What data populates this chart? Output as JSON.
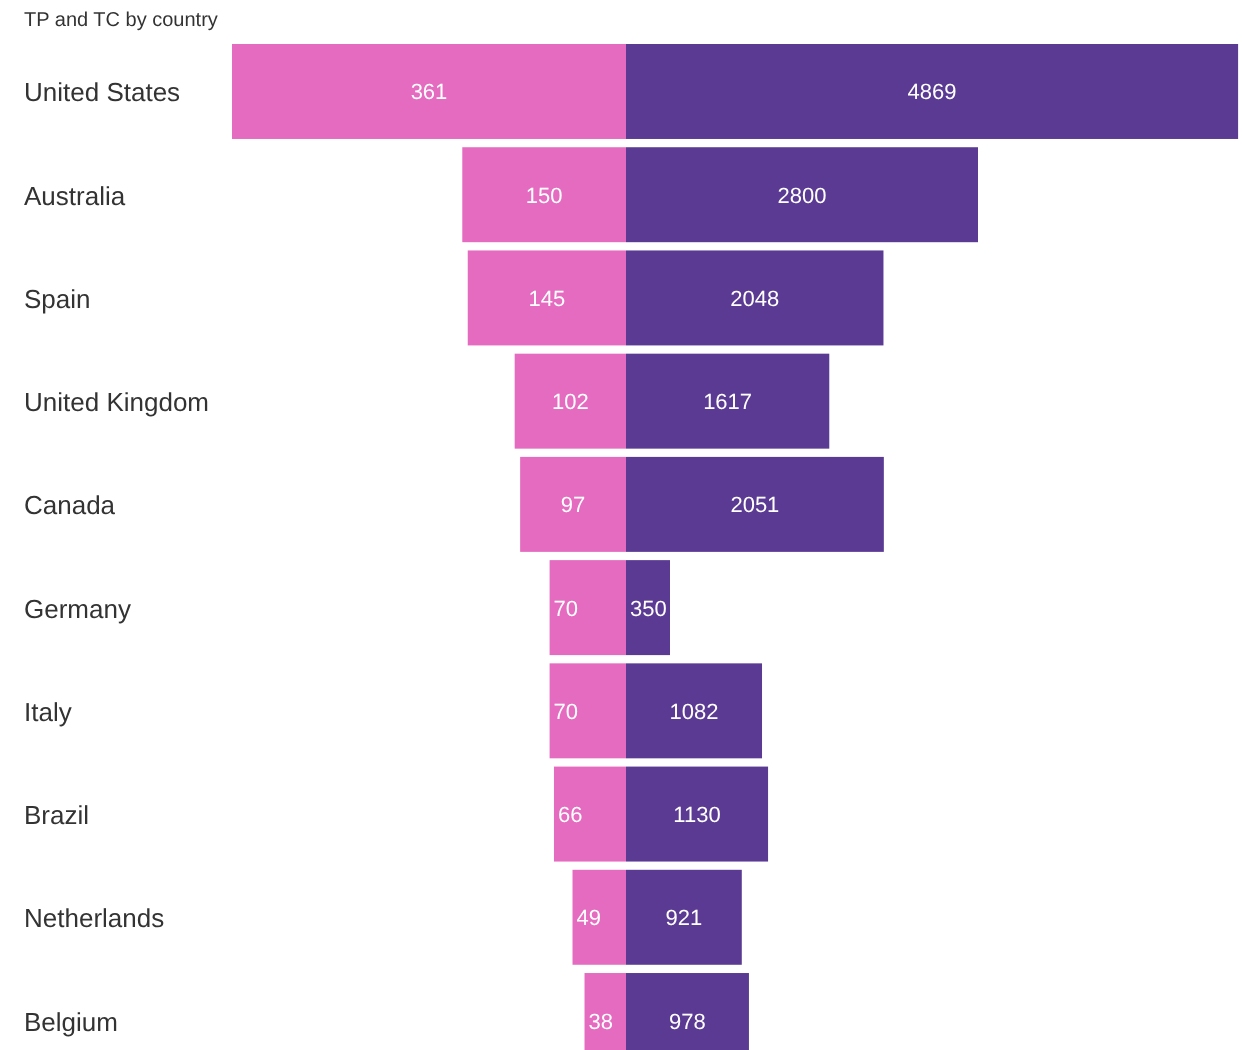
{
  "chart_data": [
    {
      "type": "bar",
      "orientation": "horizontal",
      "title": "TP and TC by country",
      "categories": [
        "United States",
        "Australia",
        "Spain",
        "United Kingdom",
        "Canada",
        "Germany",
        "Italy",
        "Brazil",
        "Netherlands",
        "Belgium"
      ],
      "series": [
        {
          "color": "#e46bbf",
          "values": [
            361,
            150,
            145,
            102,
            97,
            70,
            70,
            66,
            49,
            38
          ]
        }
      ],
      "xlim": [
        361,
        0
      ],
      "data_labels": true,
      "tick_labels": "y"
    },
    {
      "type": "bar",
      "orientation": "horizontal",
      "categories": [
        null,
        null,
        null,
        null,
        null,
        null,
        null,
        null,
        null,
        null
      ],
      "series": [
        {
          "color": "#5a3a92",
          "values": [
            4869,
            2800,
            2048,
            1617,
            2051,
            350,
            1082,
            1130,
            921,
            978
          ]
        }
      ],
      "xlim": [
        0,
        4900
      ],
      "data_labels": true
    }
  ]
}
